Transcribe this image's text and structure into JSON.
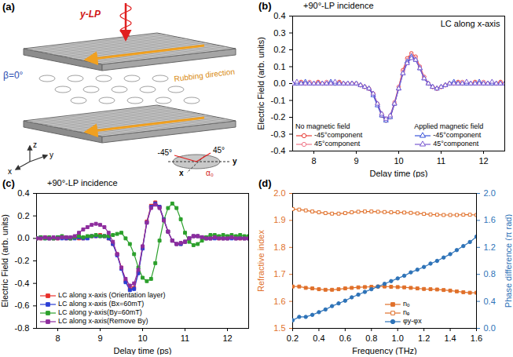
{
  "diagram": {
    "label": "(a)",
    "beam_label": "y-LP",
    "angle_label": "β=0°",
    "rubbing_label": "Rubbing direction",
    "axis_labels": {
      "x": "x",
      "y": "y",
      "z": "z"
    },
    "inset": {
      "alpha": "α₀",
      "minus": "-45°",
      "plus": "45°",
      "x": "x",
      "y": "y"
    }
  },
  "chart_data": [
    {
      "label": "(b)",
      "type": "line",
      "title": "+90°-LP incidence",
      "annotation": "LC along x-axis",
      "x_label": "Delay time (ps)",
      "y_label": "Electric Field (arb. units)",
      "xlim": [
        7.5,
        12.5
      ],
      "xticks": [
        8,
        9,
        10,
        11,
        12
      ],
      "ylim": [
        -0.4,
        0.4
      ],
      "yticks": [
        -0.4,
        -0.3,
        -0.2,
        -0.1,
        {
          "value": 0,
          "label": "0.0"
        },
        0.1,
        0.2,
        0.3,
        0.4
      ],
      "legend": "lower left",
      "x": [
        7.5,
        7.6,
        7.7,
        7.8,
        7.9,
        8.0,
        8.1,
        8.2,
        8.3,
        8.4,
        8.5,
        8.6,
        8.7,
        8.8,
        8.9,
        9.0,
        9.1,
        9.2,
        9.3,
        9.4,
        9.5,
        9.6,
        9.7,
        9.8,
        9.9,
        10.0,
        10.1,
        10.2,
        10.3,
        10.4,
        10.5,
        10.6,
        10.7,
        10.8,
        10.9,
        11.0,
        11.1,
        11.2,
        11.3,
        11.4,
        11.5,
        11.6,
        11.7,
        11.8,
        11.9,
        12.0,
        12.1,
        12.2,
        12.3,
        12.4,
        12.5
      ],
      "series": [
        {
          "name": "-45°component",
          "group": "No magnetic field",
          "color": "#e8413b",
          "marker": "open_circle",
          "values": [
            0,
            0,
            0.01,
            0,
            0,
            0,
            0.01,
            0,
            0,
            0,
            0,
            0.01,
            0,
            0,
            0,
            0,
            -0.01,
            -0.02,
            -0.03,
            -0.06,
            -0.12,
            -0.19,
            -0.22,
            -0.2,
            -0.12,
            -0.02,
            0.08,
            0.15,
            0.18,
            0.16,
            0.1,
            0.04,
            0,
            -0.02,
            -0.03,
            -0.02,
            -0.01,
            0,
            0,
            0.01,
            0,
            0,
            0,
            0.01,
            0,
            0,
            0,
            0,
            0,
            0.01,
            0
          ]
        },
        {
          "name": "45°component",
          "group": "No magnetic field",
          "color": "#f07a8a",
          "marker": "open_circle",
          "values": [
            0,
            0,
            0,
            0,
            0.01,
            0,
            0,
            0,
            0.01,
            0,
            0,
            0,
            0,
            0,
            0,
            0,
            -0.01,
            -0.02,
            -0.03,
            -0.06,
            -0.12,
            -0.18,
            -0.21,
            -0.19,
            -0.11,
            -0.02,
            0.07,
            0.14,
            0.17,
            0.15,
            0.1,
            0.04,
            0,
            -0.02,
            -0.03,
            -0.02,
            -0.01,
            0,
            0,
            0,
            0.01,
            0,
            0,
            0,
            0,
            0.01,
            0,
            0,
            0,
            0,
            0
          ]
        },
        {
          "name": "-45°component",
          "group": "Applied magnetic field",
          "color": "#3b55d9",
          "marker": "open_triangle",
          "values": [
            0,
            0,
            0,
            0.01,
            0,
            0,
            0,
            0,
            0,
            0.01,
            0,
            0,
            0,
            0,
            0,
            0,
            -0.01,
            -0.02,
            -0.03,
            -0.07,
            -0.13,
            -0.19,
            -0.22,
            -0.2,
            -0.12,
            -0.03,
            0.06,
            0.13,
            0.16,
            0.14,
            0.09,
            0.03,
            0,
            -0.02,
            -0.03,
            -0.02,
            -0.01,
            0,
            0.01,
            0,
            0,
            0,
            0,
            0,
            0.01,
            0,
            0,
            0,
            0,
            0,
            0
          ]
        },
        {
          "name": "45°component",
          "group": "Applied magnetic field",
          "color": "#7a5ad0",
          "marker": "open_triangle",
          "values": [
            0,
            0.01,
            0,
            0,
            0,
            0,
            0,
            0,
            0,
            0,
            0.01,
            0,
            0,
            0,
            0,
            0,
            -0.01,
            -0.02,
            -0.03,
            -0.06,
            -0.12,
            -0.18,
            -0.21,
            -0.19,
            -0.12,
            -0.03,
            0.06,
            0.12,
            0.15,
            0.14,
            0.09,
            0.03,
            0,
            -0.02,
            -0.03,
            -0.02,
            -0.01,
            0,
            0,
            0,
            0,
            0.01,
            0,
            0,
            0,
            0,
            0,
            0.01,
            0,
            0,
            0
          ]
        }
      ]
    },
    {
      "label": "(c)",
      "type": "line",
      "title": "+90°-LP incidence",
      "x_label": "Delay time (ps)",
      "y_label": "Electric Field (arb. units)",
      "xlim": [
        7.5,
        12.5
      ],
      "xticks": [
        8,
        9,
        10,
        11,
        12
      ],
      "ylim": [
        -0.8,
        0.4
      ],
      "yticks": [
        -0.8,
        -0.6,
        -0.4,
        -0.2,
        {
          "value": 0,
          "label": "0.0"
        },
        0.2,
        0.4
      ],
      "legend": "lower left",
      "x": [
        7.5,
        7.6,
        7.7,
        7.8,
        7.9,
        8.0,
        8.1,
        8.2,
        8.3,
        8.4,
        8.5,
        8.6,
        8.7,
        8.8,
        8.9,
        9.0,
        9.1,
        9.2,
        9.3,
        9.4,
        9.5,
        9.6,
        9.7,
        9.8,
        9.9,
        10.0,
        10.1,
        10.2,
        10.3,
        10.4,
        10.5,
        10.6,
        10.7,
        10.8,
        10.9,
        11.0,
        11.1,
        11.2,
        11.3,
        11.4,
        11.5,
        11.6,
        11.7,
        11.8,
        11.9,
        12.0,
        12.1,
        12.2,
        12.3,
        12.4,
        12.5
      ],
      "series": [
        {
          "name": "LC along x-axis (Orientation layer)",
          "color": "#e8302a",
          "marker": "square",
          "values": [
            0,
            0,
            0.01,
            0,
            0,
            0,
            0.01,
            0,
            0,
            0.01,
            0,
            0,
            0.01,
            0.02,
            0.02,
            0.03,
            0.02,
            0,
            -0.05,
            -0.14,
            -0.26,
            -0.38,
            -0.45,
            -0.44,
            -0.3,
            -0.08,
            0.15,
            0.29,
            0.32,
            0.28,
            0.17,
            0.06,
            -0.02,
            -0.05,
            -0.05,
            -0.03,
            0,
            0.02,
            0.02,
            0.01,
            0,
            0,
            0.01,
            0,
            0,
            0,
            0.01,
            0,
            0,
            0,
            0
          ]
        },
        {
          "name": "LC along x-axis (Bx=60mT)",
          "color": "#2b3fd6",
          "marker": "square",
          "values": [
            0,
            0.01,
            0,
            0,
            0,
            0.01,
            0,
            0,
            0,
            0,
            0.01,
            0,
            0,
            0.02,
            0.02,
            0.02,
            0.02,
            0,
            -0.05,
            -0.15,
            -0.27,
            -0.39,
            -0.46,
            -0.45,
            -0.31,
            -0.09,
            0.14,
            0.28,
            0.31,
            0.28,
            0.17,
            0.06,
            -0.02,
            -0.05,
            -0.05,
            -0.03,
            0,
            0.02,
            0.02,
            0.01,
            0,
            0,
            0,
            0.01,
            0,
            0,
            0,
            0,
            0.01,
            0,
            0
          ]
        },
        {
          "name": "LC along y-axis(By=60mT)",
          "color": "#2ca02c",
          "marker": "square",
          "values": [
            0,
            0.01,
            0,
            0.01,
            0,
            0.01,
            0.02,
            0.01,
            0,
            0.01,
            0.02,
            0.01,
            0.02,
            0.02,
            0.03,
            0.02,
            0.02,
            0.02,
            0.03,
            0.04,
            0.05,
            0,
            -0.05,
            -0.14,
            -0.26,
            -0.35,
            -0.38,
            -0.36,
            -0.22,
            -0.02,
            0.16,
            0.27,
            0.31,
            0.27,
            0.17,
            0.05,
            -0.03,
            -0.06,
            -0.05,
            -0.02,
            0.01,
            0.03,
            0.03,
            0.02,
            0.03,
            0.02,
            0.03,
            0.02,
            0.03,
            0.02,
            0.02
          ]
        },
        {
          "name": "LC along x-axis(Remove By)",
          "color": "#8e2d9e",
          "marker": "square",
          "values": [
            0,
            0,
            0.01,
            0,
            0.01,
            0,
            0.01,
            0.01,
            0.01,
            0.02,
            0.05,
            0.08,
            0.1,
            0.12,
            0.13,
            0.12,
            0.1,
            0.05,
            -0.03,
            -0.14,
            -0.26,
            -0.36,
            -0.42,
            -0.4,
            -0.28,
            -0.07,
            0.14,
            0.27,
            0.3,
            0.27,
            0.16,
            0.06,
            -0.02,
            -0.05,
            -0.04,
            -0.03,
            0,
            0.02,
            0.02,
            0.01,
            0,
            0,
            0.01,
            0,
            0,
            0,
            0.01,
            0,
            0,
            0,
            0
          ]
        }
      ]
    },
    {
      "label": "(d)",
      "type": "line",
      "x_label": "Frequency (THz)",
      "y_label": "Refractive index",
      "y2_label": "Phase difference (π rad)",
      "xlim": [
        0.2,
        1.6
      ],
      "xticks": [
        0.2,
        0.4,
        0.6,
        0.8,
        {
          "value": 1,
          "label": "1.0"
        },
        1.2,
        1.4,
        1.6
      ],
      "ylim": [
        1.5,
        2
      ],
      "yticks": [
        1.5,
        1.6,
        1.7,
        1.8,
        1.9,
        {
          "value": 2,
          "label": "2.0"
        }
      ],
      "y2lim": [
        0,
        2
      ],
      "y2ticks": [
        {
          "value": 0,
          "label": "0.0"
        },
        0.4,
        0.8,
        1.2,
        1.6,
        {
          "value": 2,
          "label": "2.0"
        }
      ],
      "legend": "lower center",
      "x": [
        0.2,
        0.25,
        0.3,
        0.35,
        0.4,
        0.45,
        0.5,
        0.55,
        0.6,
        0.65,
        0.7,
        0.75,
        0.8,
        0.85,
        0.9,
        0.95,
        1.0,
        1.05,
        1.1,
        1.15,
        1.2,
        1.25,
        1.3,
        1.35,
        1.4,
        1.45,
        1.5,
        1.55,
        1.6
      ],
      "series": [
        {
          "name": "nₒ",
          "color": "#e0702a",
          "marker": "square",
          "values": [
            1.655,
            1.655,
            1.65,
            1.648,
            1.645,
            1.643,
            1.643,
            1.645,
            1.648,
            1.65,
            1.652,
            1.653,
            1.654,
            1.655,
            1.655,
            1.654,
            1.653,
            1.652,
            1.65,
            1.648,
            1.646,
            1.645,
            1.644,
            1.642,
            1.64,
            1.637,
            1.634,
            1.632,
            1.632
          ]
        },
        {
          "name": "nₑ",
          "color": "#e0702a",
          "marker": "open_square",
          "values": [
            1.942,
            1.94,
            1.937,
            1.933,
            1.93,
            1.927,
            1.925,
            1.925,
            1.927,
            1.93,
            1.932,
            1.933,
            1.933,
            1.932,
            1.931,
            1.93,
            1.93,
            1.929,
            1.928,
            1.926,
            1.924,
            1.922,
            1.921,
            1.92,
            1.92,
            1.92,
            1.921,
            1.921,
            1.92
          ]
        },
        {
          "name": "φy-φx",
          "color": "#2e73b8",
          "marker": "circle",
          "axis": "y2",
          "values": [
            0.12,
            0.17,
            0.17,
            0.2,
            0.24,
            0.28,
            0.33,
            0.37,
            0.41,
            0.46,
            0.5,
            0.54,
            0.58,
            0.62,
            0.66,
            0.7,
            0.74,
            0.78,
            0.83,
            0.87,
            0.91,
            0.96,
            1.0,
            1.05,
            1.1,
            1.16,
            1.22,
            1.28,
            1.36
          ]
        }
      ]
    }
  ]
}
